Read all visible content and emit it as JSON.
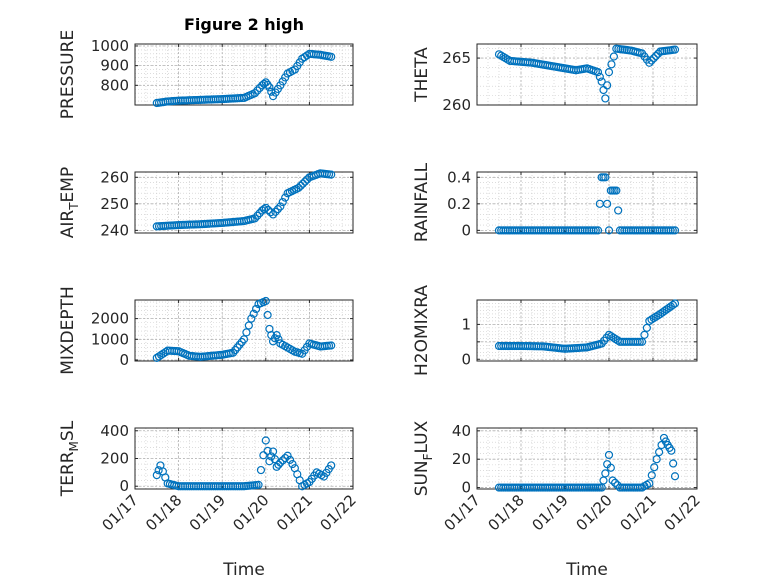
{
  "figure_title": "Figure 2 high",
  "xlabel": "Time",
  "colors": {
    "marker": "#0072BD",
    "axes": "#262626",
    "grid": "#c8c8c8"
  },
  "chart_data": [
    {
      "type": "scatter",
      "id": "pressure",
      "ylabel": "PRESSURE",
      "ylim": [
        700,
        1010
      ],
      "yticks": [
        800,
        900,
        1000
      ],
      "ytick_labels": [
        "800",
        "900",
        "1000"
      ],
      "xlim": [
        "01/17",
        "01/22"
      ],
      "xtick_labels": [
        "01/17",
        "01/18",
        "01/19",
        "01/20",
        "01/21",
        "01/22"
      ],
      "grid": true,
      "minor_grid": true,
      "x": [
        "01/17 12:00",
        "01/17 18:00",
        "01/18 00:00",
        "01/18 12:00",
        "01/19 00:00",
        "01/19 12:00",
        "01/19 18:00",
        "01/19 22:00",
        "01/20 00:00",
        "01/20 02:00",
        "01/20 04:00",
        "01/20 08:00",
        "01/20 12:00",
        "01/20 16:00",
        "01/20 20:00",
        "01/21 00:00",
        "01/21 06:00",
        "01/21 12:00"
      ],
      "y": [
        710,
        718,
        722,
        726,
        730,
        736,
        760,
        800,
        815,
        790,
        745,
        800,
        860,
        880,
        935,
        960,
        955,
        945
      ]
    },
    {
      "type": "scatter",
      "id": "theta",
      "ylabel": "THETA",
      "ylim": [
        260,
        266.5
      ],
      "yticks": [
        260,
        265
      ],
      "ytick_labels": [
        "260",
        "265"
      ],
      "xlim": [
        "01/17",
        "01/22"
      ],
      "xtick_labels": [
        "01/17",
        "01/18",
        "01/19",
        "01/20",
        "01/21",
        "01/22"
      ],
      "grid": true,
      "minor_grid": true,
      "x": [
        "01/17 12:00",
        "01/17 18:00",
        "01/18 06:00",
        "01/18 18:00",
        "01/19 06:00",
        "01/19 12:00",
        "01/19 18:00",
        "01/19 20:00",
        "01/19 22:00",
        "01/20 00:00",
        "01/20 04:00",
        "01/20 12:00",
        "01/20 18:00",
        "01/20 22:00",
        "01/21 04:00",
        "01/21 12:00"
      ],
      "y": [
        265.4,
        264.7,
        264.5,
        264.1,
        263.7,
        263.9,
        263.5,
        262.5,
        260.7,
        263.5,
        266.0,
        265.8,
        265.5,
        264.5,
        265.7,
        265.9
      ]
    },
    {
      "type": "scatter",
      "id": "airtemp",
      "ylabel": "AIR_TEMP",
      "ylim": [
        239,
        262
      ],
      "yticks": [
        240,
        250,
        260
      ],
      "ytick_labels": [
        "240",
        "250",
        "260"
      ],
      "xlim": [
        "01/17",
        "01/22"
      ],
      "xtick_labels": [
        "01/17",
        "01/18",
        "01/19",
        "01/20",
        "01/21",
        "01/22"
      ],
      "grid": true,
      "minor_grid": true,
      "x": [
        "01/17 12:00",
        "01/18 00:00",
        "01/18 12:00",
        "01/19 00:00",
        "01/19 12:00",
        "01/19 18:00",
        "01/19 22:00",
        "01/20 00:00",
        "01/20 04:00",
        "01/20 08:00",
        "01/20 12:00",
        "01/20 18:00",
        "01/21 00:00",
        "01/21 06:00",
        "01/21 12:00"
      ],
      "y": [
        241.5,
        242,
        242.3,
        242.8,
        243.5,
        244.5,
        247.5,
        248.5,
        246,
        249,
        254,
        256,
        260,
        261.5,
        261
      ]
    },
    {
      "type": "scatter",
      "id": "rainfall",
      "ylabel": "RAINFALL",
      "ylim": [
        -0.02,
        0.44
      ],
      "yticks": [
        0,
        0.2,
        0.4
      ],
      "ytick_labels": [
        "0",
        "0.2",
        "0.4"
      ],
      "xlim": [
        "01/17",
        "01/22"
      ],
      "xtick_labels": [
        "01/17",
        "01/18",
        "01/19",
        "01/20",
        "01/21",
        "01/22"
      ],
      "grid": true,
      "minor_grid": true,
      "x": [
        "01/17 12:00",
        "01/18 00:00",
        "01/18 12:00",
        "01/19 00:00",
        "01/19 12:00",
        "01/19 18:00",
        "01/19 20:00",
        "01/19 22:00",
        "01/20 00:00",
        "01/20 01:00",
        "01/20 02:00",
        "01/20 04:00",
        "01/20 06:00",
        "01/20 12:00",
        "01/21 00:00",
        "01/21 12:00"
      ],
      "y": [
        0,
        0,
        0,
        0,
        0,
        0,
        0.4,
        0.4,
        0,
        0.3,
        0.3,
        0.3,
        0,
        0,
        0,
        0
      ]
    },
    {
      "type": "scatter",
      "id": "mixdepth",
      "ylabel": "MIXDEPTH",
      "ylim": [
        -50,
        2900
      ],
      "yticks": [
        0,
        1000,
        2000
      ],
      "ytick_labels": [
        "0",
        "1000",
        "2000"
      ],
      "xlim": [
        "01/17",
        "01/22"
      ],
      "xtick_labels": [
        "01/17",
        "01/18",
        "01/19",
        "01/20",
        "01/21",
        "01/22"
      ],
      "grid": true,
      "minor_grid": true,
      "x": [
        "01/17 12:00",
        "01/17 18:00",
        "01/18 00:00",
        "01/18 06:00",
        "01/18 12:00",
        "01/18 18:00",
        "01/19 00:00",
        "01/19 06:00",
        "01/19 12:00",
        "01/19 16:00",
        "01/19 20:00",
        "01/20 00:00",
        "01/20 02:00",
        "01/20 04:00",
        "01/20 06:00",
        "01/20 08:00",
        "01/20 12:00",
        "01/20 16:00",
        "01/20 20:00",
        "01/21 00:00",
        "01/21 06:00",
        "01/21 12:00"
      ],
      "y": [
        100,
        450,
        420,
        200,
        150,
        200,
        250,
        350,
        1000,
        2000,
        2700,
        2850,
        1500,
        900,
        1200,
        800,
        600,
        400,
        300,
        800,
        650,
        700
      ]
    },
    {
      "type": "scatter",
      "id": "h2omixra",
      "ylabel": "H2OMIXRA",
      "ylim": [
        -0.05,
        1.7
      ],
      "yticks": [
        0,
        0.5,
        1
      ],
      "ytick_labels": [
        "0",
        "",
        "1"
      ],
      "xlim": [
        "01/17",
        "01/22"
      ],
      "xtick_labels": [
        "01/17",
        "01/18",
        "01/19",
        "01/20",
        "01/21",
        "01/22"
      ],
      "grid": true,
      "minor_grid": true,
      "x": [
        "01/17 12:00",
        "01/18 00:00",
        "01/18 12:00",
        "01/19 00:00",
        "01/19 12:00",
        "01/19 20:00",
        "01/20 00:00",
        "01/20 06:00",
        "01/20 12:00",
        "01/20 18:00",
        "01/20 22:00",
        "01/21 04:00",
        "01/21 12:00"
      ],
      "y": [
        0.38,
        0.38,
        0.37,
        0.3,
        0.34,
        0.45,
        0.7,
        0.5,
        0.5,
        0.5,
        1.1,
        1.3,
        1.6
      ]
    },
    {
      "type": "scatter",
      "id": "terrmsl",
      "ylabel": "TERR_MSL",
      "ylim": [
        -20,
        420
      ],
      "yticks": [
        0,
        200,
        400
      ],
      "ytick_labels": [
        "0",
        "200",
        "400"
      ],
      "xlim": [
        "01/17",
        "01/22"
      ],
      "xtick_labels": [
        "01/17",
        "01/18",
        "01/19",
        "01/20",
        "01/21",
        "01/22"
      ],
      "grid": true,
      "minor_grid": true,
      "x": [
        "01/17 12:00",
        "01/17 14:00",
        "01/17 18:00",
        "01/18 00:00",
        "01/18 12:00",
        "01/19 00:00",
        "01/19 12:00",
        "01/19 20:00",
        "01/20 00:00",
        "01/20 02:00",
        "01/20 04:00",
        "01/20 06:00",
        "01/20 08:00",
        "01/20 12:00",
        "01/20 16:00",
        "01/20 20:00",
        "01/21 00:00",
        "01/21 04:00",
        "01/21 08:00",
        "01/21 12:00"
      ],
      "y": [
        80,
        150,
        20,
        0,
        0,
        0,
        0,
        10,
        330,
        180,
        250,
        140,
        170,
        220,
        130,
        0,
        30,
        100,
        70,
        150
      ]
    },
    {
      "type": "scatter",
      "id": "sunflux",
      "ylabel": "SUN_FLUX",
      "ylim": [
        -1,
        42
      ],
      "yticks": [
        0,
        20,
        40
      ],
      "ytick_labels": [
        "0",
        "20",
        "40"
      ],
      "xlim": [
        "01/17",
        "01/22"
      ],
      "xtick_labels": [
        "01/17",
        "01/18",
        "01/19",
        "01/20",
        "01/21",
        "01/22"
      ],
      "grid": true,
      "minor_grid": true,
      "x": [
        "01/17 12:00",
        "01/18 00:00",
        "01/18 12:00",
        "01/19 00:00",
        "01/19 12:00",
        "01/19 20:00",
        "01/19 22:00",
        "01/20 00:00",
        "01/20 02:00",
        "01/20 06:00",
        "01/20 12:00",
        "01/20 18:00",
        "01/20 22:00",
        "01/21 02:00",
        "01/21 06:00",
        "01/21 08:00",
        "01/21 10:00",
        "01/21 12:00"
      ],
      "y": [
        0,
        0,
        0,
        0,
        0,
        0,
        10,
        23,
        5,
        0,
        0,
        0,
        3,
        20,
        35,
        30,
        26,
        8
      ]
    }
  ]
}
